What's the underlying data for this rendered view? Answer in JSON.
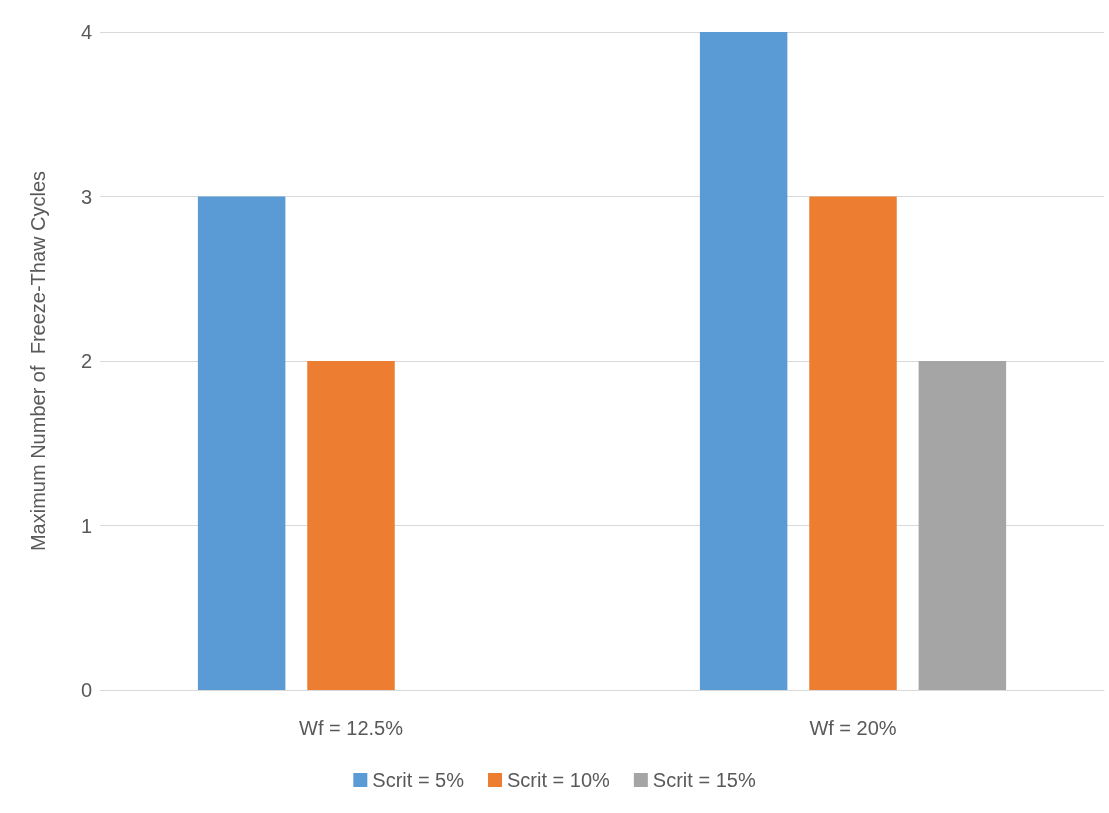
{
  "chart_data": {
    "type": "bar",
    "ylabel": "Maximum Number of  Freeze-Thaw Cycles",
    "categories": [
      "Wf = 12.5%",
      "Wf = 20%"
    ],
    "series": [
      {
        "name": "Scrit = 5%",
        "color": "#5b9bd5",
        "values": [
          3,
          4
        ]
      },
      {
        "name": "Scrit = 10%",
        "color": "#ed7d31",
        "values": [
          2,
          3
        ]
      },
      {
        "name": "Scrit = 15%",
        "color": "#a5a5a5",
        "values": [
          null,
          2
        ]
      }
    ],
    "ylim": [
      0,
      4
    ],
    "yticks": [
      0,
      1,
      2,
      3,
      4
    ],
    "grid": "y",
    "legend": "bottom"
  }
}
